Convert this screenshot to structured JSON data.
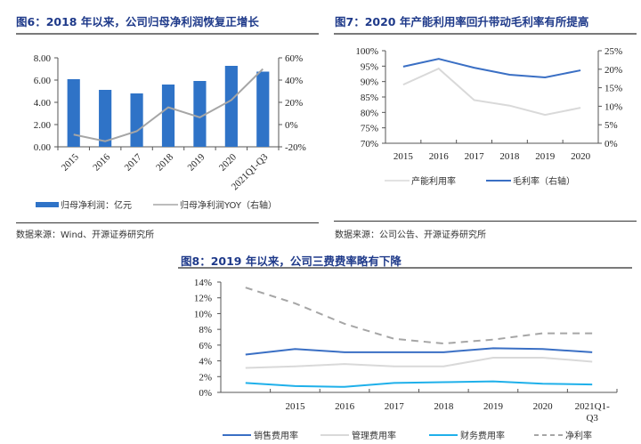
{
  "figures": {
    "fig6": {
      "title": "图6：2018 年以来，公司归母净利润恢复正增长",
      "source": "数据来源：Wind、开源证券研究所"
    },
    "fig7": {
      "title": "图7：2020 年产能利用率回升带动毛利率有所提高",
      "source": "数据来源：公司公告、开源证券研究所"
    },
    "fig8": {
      "title": "图8：2019 年以来，公司三费费率略有下降"
    }
  },
  "colors": {
    "title": "#1f3a8a",
    "bar_blue": "#2f73c7",
    "gray_line": "#a6a6a6",
    "light_gray": "#d9d9d9",
    "dark_blue": "#3a6fc4",
    "cyan": "#1fb0ea",
    "dashed_gray": "#a6a6a6"
  },
  "chart_data": [
    {
      "id": "fig6",
      "type": "bar",
      "title": "图6：2018 年以来，公司归母净利润恢复正增长",
      "categories": [
        "2015",
        "2016",
        "2017",
        "2018",
        "2019",
        "2020",
        "2021Q1-Q3"
      ],
      "series": [
        {
          "name": "归母净利润：亿元",
          "type": "bar",
          "axis": "left",
          "values": [
            6.08,
            5.12,
            4.8,
            5.6,
            5.92,
            7.28,
            6.76
          ]
        },
        {
          "name": "归母净利润YOY（右轴）",
          "type": "line",
          "axis": "right",
          "values": [
            -9,
            -15,
            -6,
            15.5,
            6.5,
            22,
            50
          ]
        }
      ],
      "ylim_left": [
        0,
        8
      ],
      "yticks_left": [
        "0.00",
        "2.00",
        "4.00",
        "6.00",
        "8.00"
      ],
      "ylim_right": [
        -20,
        60
      ],
      "yticks_right": [
        "-20%",
        "0%",
        "20%",
        "40%",
        "60%"
      ],
      "legend": [
        "归母净利润：亿元",
        "归母净利润YOY（右轴）"
      ],
      "legend_position": "bottom",
      "grid": false
    },
    {
      "id": "fig7",
      "type": "line",
      "title": "图7：2020 年产能利用率回升带动毛利率有所提高",
      "categories": [
        "2015",
        "2016",
        "2017",
        "2018",
        "2019",
        "2020"
      ],
      "series": [
        {
          "name": "产能利用率",
          "axis": "left",
          "values": [
            89,
            94.2,
            84,
            82.2,
            79.2,
            81.5
          ]
        },
        {
          "name": "毛利率（右轴）",
          "axis": "right",
          "values": [
            20.7,
            22.8,
            20.4,
            18.5,
            17.8,
            19.7
          ]
        }
      ],
      "ylim_left": [
        70,
        100
      ],
      "yticks_left": [
        "70%",
        "75%",
        "80%",
        "85%",
        "90%",
        "95%",
        "100%"
      ],
      "ylim_right": [
        0,
        25
      ],
      "yticks_right": [
        "0%",
        "5%",
        "10%",
        "15%",
        "20%",
        "25%"
      ],
      "legend": [
        "产能利用率",
        "毛利率（右轴）"
      ],
      "legend_position": "bottom",
      "grid": false
    },
    {
      "id": "fig8",
      "type": "line",
      "title": "图8：2019 年以来，公司三费费率略有下降",
      "categories": [
        "",
        "2015",
        "2016",
        "2017",
        "2018",
        "2019",
        "2020",
        "2021Q1-Q3"
      ],
      "category_label_lines": [
        [
          ""
        ],
        [
          "2015"
        ],
        [
          "2016"
        ],
        [
          "2017"
        ],
        [
          "2018"
        ],
        [
          "2019"
        ],
        [
          "2020"
        ],
        [
          "2021Q1-",
          "Q3"
        ]
      ],
      "series": [
        {
          "name": "销售费用率",
          "values": [
            4.8,
            5.5,
            5.1,
            5.1,
            5.1,
            5.6,
            5.5,
            5.1
          ]
        },
        {
          "name": "管理费用率",
          "values": [
            3.1,
            3.3,
            3.6,
            3.3,
            3.3,
            4.4,
            4.4,
            3.9
          ]
        },
        {
          "name": "财务费用率",
          "values": [
            1.2,
            0.8,
            0.7,
            1.2,
            1.3,
            1.4,
            1.1,
            1.0
          ]
        },
        {
          "name": "净利率",
          "values": [
            13.3,
            11.3,
            8.7,
            6.8,
            6.2,
            6.7,
            7.5,
            7.5
          ]
        }
      ],
      "ylim": [
        0,
        14
      ],
      "yticks": [
        "0%",
        "2%",
        "4%",
        "6%",
        "8%",
        "10%",
        "12%",
        "14%"
      ],
      "legend": [
        "销售费用率",
        "管理费用率",
        "财务费用率",
        "净利率"
      ],
      "legend_position": "bottom",
      "grid": false
    }
  ]
}
